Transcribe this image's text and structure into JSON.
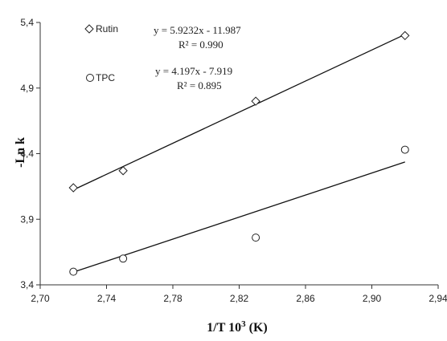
{
  "chart_data": {
    "type": "scatter",
    "xlabel": "1/T 10",
    "xlabel_sup": "3",
    "xlabel_unit": " (K)",
    "ylabel": "-Ln k",
    "xlim": [
      2.7,
      2.94
    ],
    "ylim": [
      3.4,
      5.4
    ],
    "x_ticks": [
      "2,70",
      "2,74",
      "2,78",
      "2,82",
      "2,86",
      "2,90",
      "2,94"
    ],
    "y_ticks": [
      "3,4",
      "3,9",
      "4,4",
      "4,9",
      "5,4"
    ],
    "grid": false,
    "legend_position": "top-left",
    "series": [
      {
        "name": "Rutin",
        "marker": "diamond",
        "x": [
          2.72,
          2.75,
          2.83,
          2.92
        ],
        "y": [
          4.14,
          4.27,
          4.8,
          5.3
        ],
        "fit": {
          "slope": 5.9232,
          "intercept": -11.987
        },
        "equation": "y = 5.9232x - 11.987",
        "r2_label": "R² = 0.990"
      },
      {
        "name": "TPC",
        "marker": "circle",
        "x": [
          2.72,
          2.75,
          2.83,
          2.92
        ],
        "y": [
          3.5,
          3.6,
          3.76,
          4.43
        ],
        "fit": {
          "slope": 4.197,
          "intercept": -7.919
        },
        "equation": "y = 4.197x - 7.919",
        "r2_label": "R² = 0.895"
      }
    ]
  }
}
